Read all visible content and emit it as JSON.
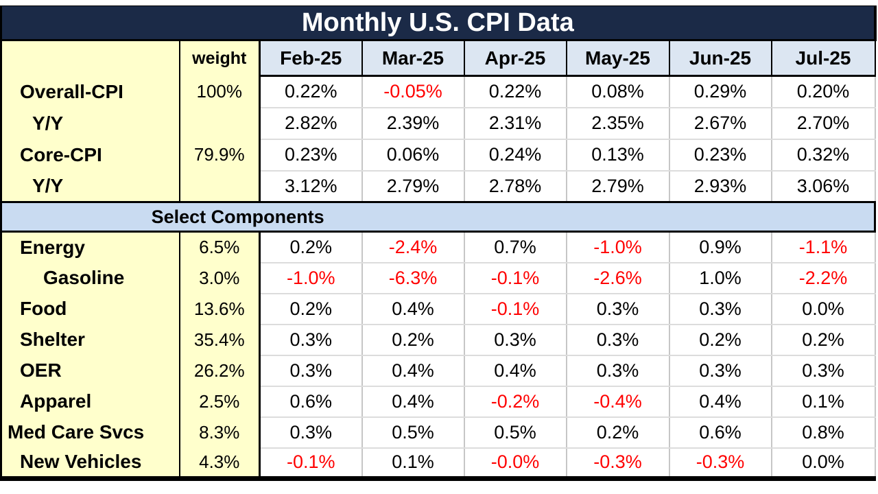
{
  "colors": {
    "title_bar": "#1b2a47",
    "title_text": "#ffffff",
    "month_header_bg": "#dce6f2",
    "section_band_bg": "#c9dbf1",
    "label_column_bg": "#ffffcc",
    "negative_value": "#ff0000",
    "positive_value": "#000000",
    "gridline": "#c6c6c6",
    "border": "#000000"
  },
  "chart_data": {
    "type": "table",
    "title": "Monthly U.S. CPI Data",
    "weight_header": "weight",
    "months": [
      "Feb-25",
      "Mar-25",
      "Apr-25",
      "May-25",
      "Jun-25",
      "Jul-25"
    ],
    "section_label": "Select Components",
    "top_rows": [
      {
        "label": "Overall-CPI",
        "indent": "normal",
        "weight": "100%",
        "values": [
          "0.22%",
          "-0.05%",
          "0.22%",
          "0.08%",
          "0.29%",
          "0.20%"
        ]
      },
      {
        "label": "Y/Y",
        "indent": "yy",
        "weight": "",
        "values": [
          "2.82%",
          "2.39%",
          "2.31%",
          "2.35%",
          "2.67%",
          "2.70%"
        ]
      },
      {
        "label": "Core-CPI",
        "indent": "normal",
        "weight": "79.9%",
        "values": [
          "0.23%",
          "0.06%",
          "0.24%",
          "0.13%",
          "0.23%",
          "0.32%"
        ]
      },
      {
        "label": "Y/Y",
        "indent": "yy",
        "weight": "",
        "values": [
          "3.12%",
          "2.79%",
          "2.78%",
          "2.79%",
          "2.93%",
          "3.06%"
        ]
      }
    ],
    "component_rows": [
      {
        "label": "Energy",
        "indent": "normal",
        "weight": "6.5%",
        "values": [
          "0.2%",
          "-2.4%",
          "0.7%",
          "-1.0%",
          "0.9%",
          "-1.1%"
        ]
      },
      {
        "label": "Gasoline",
        "indent": "sub",
        "weight": "3.0%",
        "values": [
          "-1.0%",
          "-6.3%",
          "-0.1%",
          "-2.6%",
          "1.0%",
          "-2.2%"
        ]
      },
      {
        "label": "Food",
        "indent": "normal",
        "weight": "13.6%",
        "values": [
          "0.2%",
          "0.4%",
          "-0.1%",
          "0.3%",
          "0.3%",
          "0.0%"
        ]
      },
      {
        "label": "Shelter",
        "indent": "normal",
        "weight": "35.4%",
        "values": [
          "0.3%",
          "0.2%",
          "0.3%",
          "0.3%",
          "0.2%",
          "0.2%"
        ]
      },
      {
        "label": "OER",
        "indent": "normal",
        "weight": "26.2%",
        "values": [
          "0.3%",
          "0.4%",
          "0.4%",
          "0.3%",
          "0.3%",
          "0.3%"
        ]
      },
      {
        "label": "Apparel",
        "indent": "normal",
        "weight": "2.5%",
        "values": [
          "0.6%",
          "0.4%",
          "-0.2%",
          "-0.4%",
          "0.4%",
          "0.1%"
        ]
      },
      {
        "label": "Med Care Svcs",
        "indent": "tight",
        "weight": "8.3%",
        "values": [
          "0.3%",
          "0.5%",
          "0.5%",
          "0.2%",
          "0.6%",
          "0.8%"
        ]
      },
      {
        "label": "New Vehicles",
        "indent": "normal",
        "weight": "4.3%",
        "values": [
          "-0.1%",
          "0.1%",
          "-0.0%",
          "-0.3%",
          "-0.3%",
          "0.0%"
        ]
      }
    ]
  }
}
